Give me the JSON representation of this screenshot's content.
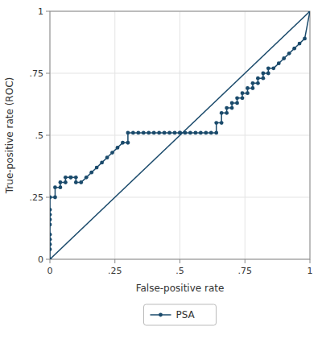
{
  "chart_data": {
    "type": "line",
    "xlabel": "False-positive rate",
    "ylabel": "True-positive rate (ROC)",
    "xlim": [
      0,
      1
    ],
    "ylim": [
      0,
      1
    ],
    "xticks": [
      0,
      {
        "value": 0.25,
        "label": ".25"
      },
      {
        "value": 0.5,
        "label": ".5"
      },
      {
        "value": 0.75,
        "label": ".75"
      },
      1
    ],
    "yticks": [
      0,
      {
        "value": 0.25,
        "label": ".25"
      },
      {
        "value": 0.5,
        "label": ".5"
      },
      {
        "value": 0.75,
        "label": ".75"
      },
      1
    ],
    "grid": true,
    "legend": "bottom",
    "series": [
      {
        "name": "PSA",
        "color": "#1a4a6b",
        "marker": "circle",
        "x": [
          0.0,
          0.0,
          0.0,
          0.0,
          0.0,
          0.0,
          0.0,
          0.0,
          0.0,
          0.0,
          0.02,
          0.02,
          0.04,
          0.04,
          0.06,
          0.06,
          0.08,
          0.08,
          0.1,
          0.1,
          0.12,
          0.14,
          0.16,
          0.18,
          0.2,
          0.22,
          0.24,
          0.26,
          0.28,
          0.3,
          0.3,
          0.32,
          0.34,
          0.36,
          0.38,
          0.4,
          0.42,
          0.44,
          0.46,
          0.48,
          0.5,
          0.5,
          0.52,
          0.54,
          0.56,
          0.58,
          0.6,
          0.62,
          0.64,
          0.64,
          0.66,
          0.66,
          0.68,
          0.68,
          0.7,
          0.7,
          0.72,
          0.72,
          0.74,
          0.74,
          0.76,
          0.76,
          0.78,
          0.78,
          0.8,
          0.8,
          0.82,
          0.82,
          0.84,
          0.84,
          0.86,
          0.88,
          0.9,
          0.92,
          0.94,
          0.96,
          0.98,
          1.0
        ],
        "values": [
          0.0,
          0.04,
          0.06,
          0.08,
          0.1,
          0.14,
          0.16,
          0.18,
          0.2,
          0.25,
          0.25,
          0.29,
          0.29,
          0.31,
          0.31,
          0.33,
          0.33,
          0.33,
          0.33,
          0.31,
          0.31,
          0.33,
          0.35,
          0.37,
          0.39,
          0.41,
          0.43,
          0.45,
          0.47,
          0.47,
          0.51,
          0.51,
          0.51,
          0.51,
          0.51,
          0.51,
          0.51,
          0.51,
          0.51,
          0.51,
          0.51,
          0.51,
          0.51,
          0.51,
          0.51,
          0.51,
          0.51,
          0.51,
          0.51,
          0.55,
          0.55,
          0.59,
          0.59,
          0.61,
          0.61,
          0.63,
          0.63,
          0.65,
          0.65,
          0.67,
          0.67,
          0.69,
          0.69,
          0.71,
          0.71,
          0.73,
          0.73,
          0.75,
          0.75,
          0.77,
          0.77,
          0.79,
          0.81,
          0.83,
          0.85,
          0.87,
          0.89,
          1.0
        ]
      },
      {
        "color": "#1a4a6b",
        "x": [
          0,
          1
        ],
        "values": [
          0,
          1
        ]
      }
    ]
  }
}
